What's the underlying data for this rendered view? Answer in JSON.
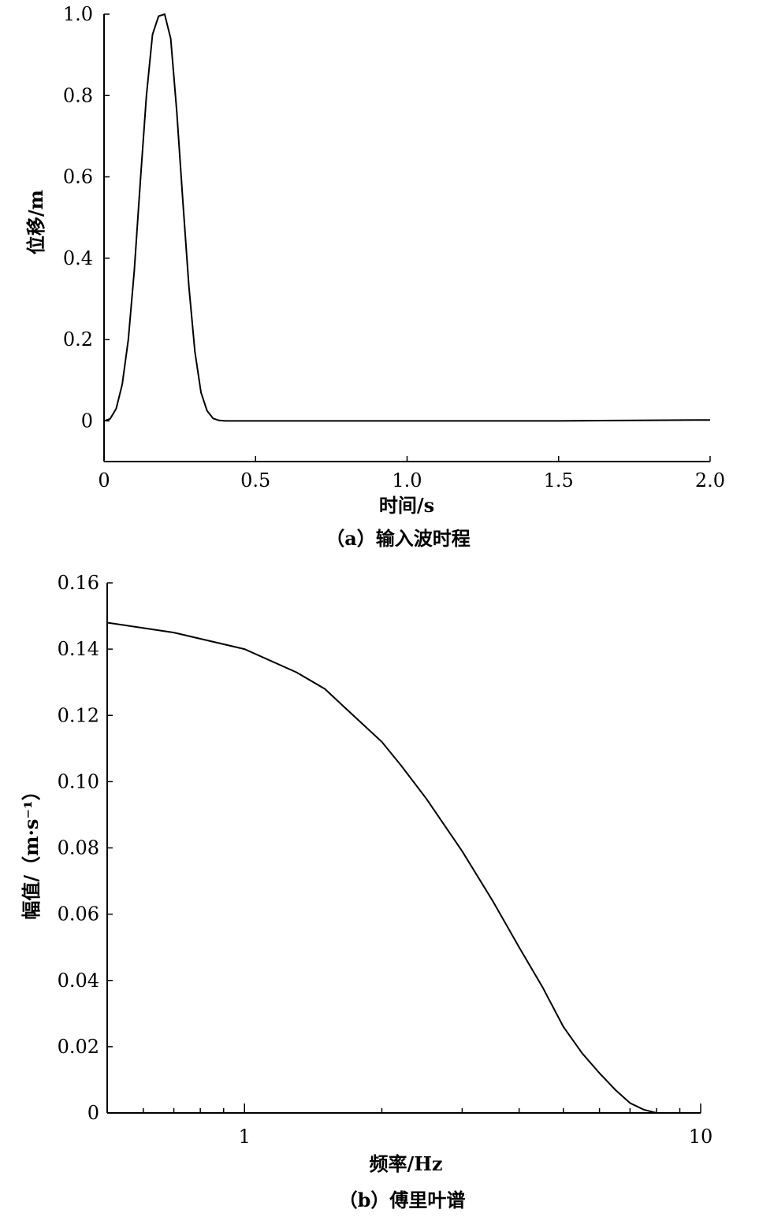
{
  "chart_data": [
    {
      "type": "line",
      "caption": "（a）输入波时程",
      "xlabel": "时间/s",
      "ylabel": "位移/m",
      "xlim": [
        0,
        2.0
      ],
      "ylim": [
        -0.1,
        1.0
      ],
      "xticks": [
        0,
        0.5,
        1.0,
        1.5,
        2.0
      ],
      "xtick_labels": [
        "0",
        "0.5",
        "1.0",
        "1.5",
        "2.0"
      ],
      "yticks": [
        0,
        0.2,
        0.4,
        0.6,
        0.8,
        1.0
      ],
      "ytick_labels": [
        "0",
        "0.2",
        "0.4",
        "0.6",
        "0.8",
        "1.0"
      ],
      "grid": false,
      "series": [
        {
          "x": [
            0,
            0.02,
            0.04,
            0.06,
            0.08,
            0.1,
            0.12,
            0.14,
            0.16,
            0.18,
            0.2,
            0.22,
            0.24,
            0.26,
            0.28,
            0.3,
            0.32,
            0.34,
            0.36,
            0.38,
            0.4,
            0.6,
            1.0,
            1.5,
            1.95,
            2.0
          ],
          "y": [
            0,
            0.005,
            0.03,
            0.09,
            0.2,
            0.37,
            0.59,
            0.8,
            0.95,
            0.995,
            1.0,
            0.94,
            0.76,
            0.54,
            0.33,
            0.17,
            0.07,
            0.025,
            0.006,
            0.001,
            0,
            0,
            0,
            0,
            0.002,
            0.002
          ]
        }
      ]
    },
    {
      "type": "line",
      "caption": "（b）傅里叶谱",
      "xlabel": "频率/Hz",
      "ylabel": "幅值/（m·s⁻¹）",
      "xscale": "log",
      "xlim": [
        0.5,
        10
      ],
      "ylim": [
        0,
        0.16
      ],
      "xticks": [
        1,
        10
      ],
      "xtick_labels": [
        "1",
        "10"
      ],
      "yticks": [
        0,
        0.02,
        0.04,
        0.06,
        0.08,
        0.1,
        0.12,
        0.14,
        0.16
      ],
      "ytick_labels": [
        "0",
        "0.02",
        "0.04",
        "0.06",
        "0.08",
        "0.10",
        "0.12",
        "0.14",
        "0.16"
      ],
      "grid": false,
      "series": [
        {
          "x": [
            0.5,
            0.7,
            1.0,
            1.3,
            1.5,
            1.7,
            2.0,
            2.2,
            2.5,
            3.0,
            3.5,
            4.0,
            4.5,
            5.0,
            5.5,
            6.0,
            6.5,
            7.0,
            7.5,
            8.0,
            8.5
          ],
          "y": [
            0.148,
            0.145,
            0.14,
            0.133,
            0.128,
            0.121,
            0.112,
            0.105,
            0.095,
            0.079,
            0.064,
            0.05,
            0.038,
            0.026,
            0.018,
            0.012,
            0.007,
            0.003,
            0.001,
            0.0,
            0.0
          ]
        }
      ]
    }
  ]
}
